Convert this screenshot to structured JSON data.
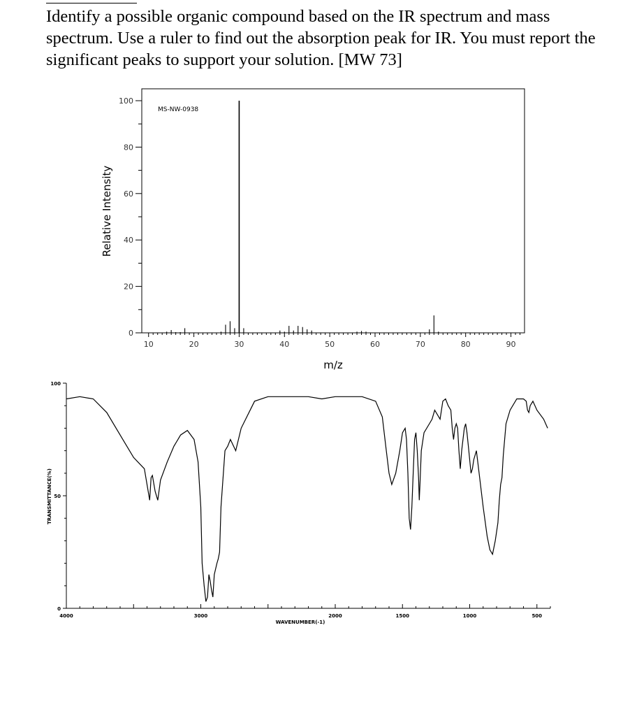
{
  "question": {
    "text": "Identify a possible organic compound based on the IR spectrum and mass spectrum. Use a ruler to find out the absorption peak for IR. You must report the significant peaks to support your solution. [MW 73]"
  },
  "chart_data": [
    {
      "type": "bar",
      "id": "mass-spectrum",
      "annotation": "MS-NW-0938",
      "xlabel": "m/z",
      "ylabel": "Relative Intensity",
      "xlim": [
        8.5,
        93
      ],
      "ylim": [
        0,
        100
      ],
      "x_ticks": [
        10,
        20,
        30,
        40,
        50,
        60,
        70,
        80,
        90
      ],
      "y_ticks": [
        0,
        20,
        40,
        60,
        80,
        100
      ],
      "grid": false,
      "peaks": [
        {
          "mz": 14,
          "intensity": 0.5
        },
        {
          "mz": 15,
          "intensity": 1.2
        },
        {
          "mz": 16,
          "intensity": 0.3
        },
        {
          "mz": 17,
          "intensity": 0.3
        },
        {
          "mz": 18,
          "intensity": 2.0
        },
        {
          "mz": 26,
          "intensity": 0.5
        },
        {
          "mz": 27,
          "intensity": 3.5
        },
        {
          "mz": 28,
          "intensity": 5.0
        },
        {
          "mz": 29,
          "intensity": 2.0
        },
        {
          "mz": 30,
          "intensity": 100
        },
        {
          "mz": 31,
          "intensity": 2.0
        },
        {
          "mz": 39,
          "intensity": 1.0
        },
        {
          "mz": 40,
          "intensity": 0.5
        },
        {
          "mz": 41,
          "intensity": 3.0
        },
        {
          "mz": 42,
          "intensity": 1.0
        },
        {
          "mz": 43,
          "intensity": 3.0
        },
        {
          "mz": 44,
          "intensity": 2.5
        },
        {
          "mz": 45,
          "intensity": 1.5
        },
        {
          "mz": 46,
          "intensity": 1.0
        },
        {
          "mz": 56,
          "intensity": 0.5
        },
        {
          "mz": 57,
          "intensity": 0.8
        },
        {
          "mz": 58,
          "intensity": 0.5
        },
        {
          "mz": 72,
          "intensity": 1.5
        },
        {
          "mz": 73,
          "intensity": 7.5
        },
        {
          "mz": 74,
          "intensity": 0.5
        }
      ]
    },
    {
      "type": "line",
      "id": "ir-spectrum",
      "xlabel": "WAVENUMBER(-1)",
      "ylabel": "TRANSMITTANCE(%)",
      "xlim": [
        4000,
        400
      ],
      "ylim": [
        0,
        100
      ],
      "x_ticks": [
        4000,
        3000,
        2000,
        1500,
        1000,
        500
      ],
      "y_ticks": [
        0,
        50,
        100
      ],
      "x_tick_labels": [
        "4000",
        "3000",
        "2000",
        "1500",
        "1000",
        "500"
      ],
      "y_tick_labels": [
        "0",
        "50",
        "100"
      ],
      "grid": false,
      "points": [
        [
          4000,
          93
        ],
        [
          3900,
          94
        ],
        [
          3800,
          93
        ],
        [
          3700,
          87
        ],
        [
          3600,
          77
        ],
        [
          3500,
          67
        ],
        [
          3420,
          62
        ],
        [
          3400,
          55
        ],
        [
          3380,
          48
        ],
        [
          3370,
          58
        ],
        [
          3360,
          59
        ],
        [
          3340,
          52
        ],
        [
          3320,
          48
        ],
        [
          3300,
          57
        ],
        [
          3250,
          65
        ],
        [
          3200,
          72
        ],
        [
          3150,
          77
        ],
        [
          3100,
          79
        ],
        [
          3050,
          75
        ],
        [
          3020,
          65
        ],
        [
          3000,
          45
        ],
        [
          2990,
          20
        ],
        [
          2975,
          10
        ],
        [
          2962,
          3
        ],
        [
          2950,
          5
        ],
        [
          2940,
          15
        ],
        [
          2930,
          12
        ],
        [
          2920,
          8
        ],
        [
          2910,
          5
        ],
        [
          2900,
          15
        ],
        [
          2880,
          20
        ],
        [
          2870,
          22
        ],
        [
          2860,
          25
        ],
        [
          2850,
          45
        ],
        [
          2820,
          70
        ],
        [
          2800,
          72
        ],
        [
          2780,
          75
        ],
        [
          2740,
          70
        ],
        [
          2700,
          80
        ],
        [
          2600,
          92
        ],
        [
          2500,
          94
        ],
        [
          2200,
          94
        ],
        [
          2100,
          93
        ],
        [
          2000,
          94
        ],
        [
          1800,
          94
        ],
        [
          1700,
          92
        ],
        [
          1650,
          85
        ],
        [
          1620,
          70
        ],
        [
          1600,
          60
        ],
        [
          1580,
          55
        ],
        [
          1550,
          60
        ],
        [
          1520,
          70
        ],
        [
          1500,
          78
        ],
        [
          1480,
          80
        ],
        [
          1470,
          75
        ],
        [
          1460,
          60
        ],
        [
          1450,
          40
        ],
        [
          1440,
          35
        ],
        [
          1430,
          45
        ],
        [
          1420,
          60
        ],
        [
          1410,
          75
        ],
        [
          1400,
          78
        ],
        [
          1390,
          70
        ],
        [
          1380,
          58
        ],
        [
          1375,
          48
        ],
        [
          1370,
          55
        ],
        [
          1360,
          70
        ],
        [
          1340,
          78
        ],
        [
          1300,
          82
        ],
        [
          1280,
          84
        ],
        [
          1260,
          88
        ],
        [
          1240,
          86
        ],
        [
          1220,
          84
        ],
        [
          1200,
          92
        ],
        [
          1180,
          93
        ],
        [
          1160,
          90
        ],
        [
          1140,
          88
        ],
        [
          1130,
          80
        ],
        [
          1120,
          75
        ],
        [
          1110,
          80
        ],
        [
          1100,
          82
        ],
        [
          1090,
          80
        ],
        [
          1080,
          70
        ],
        [
          1070,
          62
        ],
        [
          1060,
          70
        ],
        [
          1050,
          75
        ],
        [
          1040,
          80
        ],
        [
          1030,
          82
        ],
        [
          1020,
          78
        ],
        [
          1010,
          72
        ],
        [
          1000,
          66
        ],
        [
          990,
          60
        ],
        [
          980,
          62
        ],
        [
          970,
          66
        ],
        [
          960,
          68
        ],
        [
          950,
          70
        ],
        [
          930,
          60
        ],
        [
          900,
          45
        ],
        [
          870,
          32
        ],
        [
          850,
          26
        ],
        [
          830,
          24
        ],
        [
          810,
          30
        ],
        [
          790,
          38
        ],
        [
          780,
          48
        ],
        [
          770,
          55
        ],
        [
          760,
          58
        ],
        [
          750,
          68
        ],
        [
          730,
          82
        ],
        [
          700,
          88
        ],
        [
          650,
          93
        ],
        [
          600,
          93
        ],
        [
          580,
          92
        ],
        [
          570,
          88
        ],
        [
          560,
          87
        ],
        [
          550,
          90
        ],
        [
          530,
          92
        ],
        [
          500,
          88
        ],
        [
          450,
          84
        ],
        [
          420,
          80
        ]
      ]
    }
  ]
}
